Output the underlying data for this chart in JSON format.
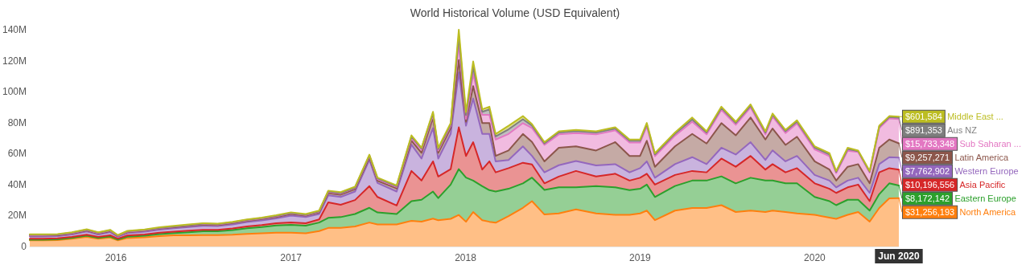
{
  "chart_data": {
    "type": "area",
    "title": "World Historical Volume (USD Equivalent)",
    "stacked": true,
    "marker": "none",
    "legend": "right",
    "x": [
      "2015-07-05",
      "2015-08-01",
      "2015-09-01",
      "2015-10-01",
      "2015-11-01",
      "2015-11-25",
      "2015-12-20",
      "2016-01-05",
      "2016-01-25",
      "2016-03-01",
      "2016-04-01",
      "2016-05-01",
      "2016-06-01",
      "2016-07-01",
      "2016-08-01",
      "2016-09-01",
      "2016-10-01",
      "2016-11-01",
      "2016-12-01",
      "2017-01-01",
      "2017-02-01",
      "2017-03-01",
      "2017-03-20",
      "2017-04-15",
      "2017-05-15",
      "2017-06-14",
      "2017-07-01",
      "2017-08-10",
      "2017-09-10",
      "2017-10-01",
      "2017-10-25",
      "2017-11-05",
      "2017-12-01",
      "2017-12-18",
      "2018-01-02",
      "2018-01-17",
      "2018-02-05",
      "2018-02-20",
      "2018-03-05",
      "2018-04-01",
      "2018-05-01",
      "2018-05-20",
      "2018-06-15",
      "2018-07-15",
      "2018-08-20",
      "2018-10-01",
      "2018-11-10",
      "2018-12-10",
      "2019-01-01",
      "2019-01-15",
      "2019-02-01",
      "2019-03-15",
      "2019-04-20",
      "2019-05-20",
      "2019-06-20",
      "2019-07-20",
      "2019-08-20",
      "2019-09-20",
      "2019-10-05",
      "2019-11-01",
      "2019-11-25",
      "2020-01-01",
      "2020-02-01",
      "2020-02-15",
      "2020-03-10",
      "2020-04-01",
      "2020-04-25",
      "2020-05-15",
      "2020-06-05",
      "2020-06-25"
    ],
    "xlim": [
      "2015-07-05",
      "2020-06-25"
    ],
    "xticks": [
      "2016",
      "2017",
      "2018",
      "2019",
      "2020"
    ],
    "ylim": [
      0,
      140000000
    ],
    "yticks": [
      0,
      {
        "value": 20000000,
        "label": "20M"
      },
      {
        "value": 40000000,
        "label": "40M"
      },
      {
        "value": 60000000,
        "label": "60M"
      },
      {
        "value": 80000000,
        "label": "80M"
      },
      {
        "value": 100000000,
        "label": "100M"
      },
      {
        "value": 120000000,
        "label": "120M"
      },
      {
        "value": 140000000,
        "label": "140M"
      }
    ],
    "annotations": [
      "Jun 2020"
    ],
    "series": [
      {
        "name": "North America",
        "color": "#ff7f0e",
        "values": [
          4000000.0,
          4000000.0,
          4200000.0,
          5000000.0,
          6200000.0,
          5000000.0,
          5800000.0,
          4000000.0,
          5500000.0,
          6000000.0,
          6800000.0,
          7200000.0,
          7200000.0,
          7400000.0,
          7400000.0,
          7600000.0,
          8200000.0,
          8600000.0,
          9000000.0,
          9000000.0,
          8500000.0,
          10000000.0,
          12000000.0,
          12000000.0,
          13000000.0,
          15500000.0,
          14300000.0,
          14300000.0,
          16600000.0,
          16100000.0,
          18000000.0,
          17000000.0,
          17900000.0,
          20400000.0,
          16000000.0,
          22300000.0,
          17000000.0,
          16000000.0,
          15400000.0,
          19600000.0,
          25000000.0,
          29300000.0,
          20700000.0,
          21400000.0,
          24000000.0,
          21400000.0,
          20500000.0,
          20500000.0,
          21400000.0,
          23200000.0,
          17000000.0,
          23200000.0,
          24900000.0,
          24900000.0,
          26700000.0,
          22300000.0,
          23200000.0,
          22300000.0,
          23200000.0,
          22300000.0,
          21400000.0,
          20500000.0,
          18700000.0,
          17900000.0,
          20500000.0,
          22300000.0,
          16100000.0,
          24900000.0,
          31100000.0,
          31256193
        ],
        "value_labels": [
          null,
          null,
          null,
          null,
          null,
          null,
          null,
          null,
          null,
          null,
          null,
          null,
          null,
          null,
          null,
          null,
          null,
          null,
          null,
          null,
          null,
          null,
          null,
          null,
          null,
          null,
          null,
          null,
          null,
          null,
          null,
          null,
          null,
          null,
          null,
          null,
          null,
          null,
          null,
          null,
          null,
          null,
          null,
          null,
          null,
          null,
          null,
          null,
          null,
          null,
          null,
          null,
          null,
          null,
          null,
          null,
          null,
          null,
          null,
          null,
          null,
          null,
          null,
          null,
          null,
          null,
          null,
          null,
          null,
          "$31,256,193"
        ]
      },
      {
        "name": "Eastern Europe",
        "color": "#2ca02c",
        "values": [
          400000.0,
          400000.0,
          500000.0,
          600000.0,
          800000.0,
          600000.0,
          700000.0,
          500000.0,
          800000.0,
          1000000.0,
          1200000.0,
          1500000.0,
          2000000.0,
          2400000.0,
          2400000.0,
          3000000.0,
          3600000.0,
          4000000.0,
          4600000.0,
          5000000.0,
          5000000.0,
          5500000.0,
          6500000.0,
          7000000.0,
          8000000.0,
          9500000.0,
          7700000.0,
          6700000.0,
          12700000.0,
          14100000.0,
          17500000.0,
          14300000.0,
          22100000.0,
          29600000.0,
          28500000.0,
          20300000.0,
          22000000.0,
          20400000.0,
          20100000.0,
          17700000.0,
          15800000.0,
          15200000.0,
          15900000.0,
          16800000.0,
          14200000.0,
          17600000.0,
          17700000.0,
          15900000.0,
          15900000.0,
          16800000.0,
          15000000.0,
          15900000.0,
          17700000.0,
          17700000.0,
          18600000.0,
          18500000.0,
          21200000.0,
          20300000.0,
          19400000.0,
          18500000.0,
          19400000.0,
          11500000.0,
          10600000.0,
          8800000.0,
          9700000.0,
          7900000.0,
          7100000.0,
          8900000.0,
          9700000.0,
          8172142
        ],
        "value_labels": [
          null,
          null,
          null,
          null,
          null,
          null,
          null,
          null,
          null,
          null,
          null,
          null,
          null,
          null,
          null,
          null,
          null,
          null,
          null,
          null,
          null,
          null,
          null,
          null,
          null,
          null,
          null,
          null,
          null,
          null,
          null,
          null,
          null,
          null,
          null,
          null,
          null,
          null,
          null,
          null,
          null,
          null,
          null,
          null,
          null,
          null,
          null,
          null,
          null,
          null,
          null,
          null,
          null,
          null,
          null,
          null,
          null,
          null,
          null,
          null,
          null,
          null,
          null,
          null,
          null,
          null,
          null,
          null,
          null,
          "$8,172,142"
        ]
      },
      {
        "name": "Asia Pacific",
        "color": "#d62728",
        "values": [
          600000.0,
          600000.0,
          600000.0,
          600000.0,
          700000.0,
          600000.0,
          800000.0,
          600000.0,
          800000.0,
          800000.0,
          900000.0,
          900000.0,
          1000000.0,
          1000000.0,
          1000000.0,
          1100000.0,
          1200000.0,
          1300000.0,
          1400000.0,
          1500000.0,
          1500000.0,
          2000000.0,
          10000000.0,
          8000000.0,
          9000000.0,
          14000000.0,
          10000000.0,
          5500000.0,
          19500000.0,
          12400000.0,
          19500000.0,
          13900000.0,
          10000000.0,
          27000000.0,
          14000000.0,
          24800000.0,
          10700000.0,
          18600000.0,
          12400000.0,
          13300000.0,
          13300000.0,
          8500000.0,
          4200000.0,
          7000000.0,
          10600000.0,
          6200000.0,
          8800000.0,
          6200000.0,
          7100000.0,
          7000000.0,
          8000000.0,
          7100000.0,
          6200000.0,
          5300000.0,
          11500000.0,
          10700000.0,
          14100000.0,
          7100000.0,
          10600000.0,
          7100000.0,
          9800000.0,
          8800000.0,
          8000000.0,
          7900000.0,
          8000000.0,
          9800000.0,
          6100000.0,
          14100000.0,
          9800000.0,
          10196556
        ],
        "value_labels": [
          null,
          null,
          null,
          null,
          null,
          null,
          null,
          null,
          null,
          null,
          null,
          null,
          null,
          null,
          null,
          null,
          null,
          null,
          null,
          null,
          null,
          null,
          null,
          null,
          null,
          null,
          null,
          null,
          null,
          null,
          null,
          null,
          null,
          null,
          null,
          null,
          null,
          null,
          null,
          null,
          null,
          null,
          null,
          null,
          null,
          null,
          null,
          null,
          null,
          null,
          null,
          null,
          null,
          null,
          null,
          null,
          null,
          null,
          null,
          null,
          null,
          null,
          null,
          null,
          null,
          null,
          null,
          null,
          null,
          "$10,196,556"
        ]
      },
      {
        "name": "Western Europe",
        "color": "#9467bd",
        "values": [
          1500000.0,
          1500000.0,
          1400000.0,
          1600000.0,
          2000000.0,
          1600000.0,
          2000000.0,
          1200000.0,
          1600000.0,
          1800000.0,
          2000000.0,
          2200000.0,
          2400000.0,
          2600000.0,
          2400000.0,
          2600000.0,
          2800000.0,
          3000000.0,
          3200000.0,
          4500000.0,
          4000000.0,
          3500000.0,
          4500000.0,
          5000000.0,
          5500000.0,
          17000000.0,
          9000000.0,
          9000000.0,
          17000000.0,
          14200000.0,
          21400000.0,
          11600000.0,
          22700000.0,
          35500000.0,
          19500000.0,
          28200000.0,
          23000000.0,
          17700000.0,
          7100000.0,
          5300000.0,
          10600000.0,
          5500000.0,
          7100000.0,
          7300000.0,
          6400000.0,
          7200000.0,
          6200000.0,
          5300000.0,
          6200000.0,
          8000000.0,
          4400000.0,
          7000000.0,
          8900000.0,
          5300000.0,
          7000000.0,
          7900000.0,
          8900000.0,
          6200000.0,
          8900000.0,
          7100000.0,
          7900000.0,
          5400000.0,
          5300000.0,
          3600000.0,
          4400000.0,
          4400000.0,
          5300000.0,
          5300000.0,
          7100000.0,
          7762902
        ],
        "value_labels": [
          null,
          null,
          null,
          null,
          null,
          null,
          null,
          null,
          null,
          null,
          null,
          null,
          null,
          null,
          null,
          null,
          null,
          null,
          null,
          null,
          null,
          null,
          null,
          null,
          null,
          null,
          null,
          null,
          null,
          null,
          null,
          null,
          null,
          null,
          null,
          null,
          null,
          null,
          null,
          null,
          null,
          null,
          null,
          null,
          null,
          null,
          null,
          null,
          null,
          null,
          null,
          null,
          null,
          null,
          null,
          null,
          null,
          null,
          null,
          null,
          null,
          null,
          null,
          null,
          null,
          null,
          null,
          null,
          null,
          "$7,762,902"
        ]
      },
      {
        "name": "Latin America",
        "color": "#8c564b",
        "values": [
          600000.0,
          600000.0,
          600000.0,
          600000.0,
          700000.0,
          600000.0,
          700000.0,
          500000.0,
          600000.0,
          600000.0,
          700000.0,
          700000.0,
          700000.0,
          800000.0,
          700000.0,
          800000.0,
          800000.0,
          900000.0,
          900000.0,
          1000000.0,
          900000.0,
          1000000.0,
          1500000.0,
          1500000.0,
          1500000.0,
          1500000.0,
          1500000.0,
          2000000.0,
          2600000.0,
          3700000.0,
          6600000.0,
          3700000.0,
          3700000.0,
          7900000.0,
          2600000.0,
          8000000.0,
          7000000.0,
          7000000.0,
          3500000.0,
          6100000.0,
          8000000.0,
          9000000.0,
          7100000.0,
          11300000.0,
          9500000.0,
          9600000.0,
          14200000.0,
          10600000.0,
          7900000.0,
          13300000.0,
          7100000.0,
          11500000.0,
          15000000.0,
          13300000.0,
          15900000.0,
          12400000.0,
          15900000.0,
          13200000.0,
          14100000.0,
          10600000.0,
          12400000.0,
          8800000.0,
          7100000.0,
          4400000.0,
          8900000.0,
          8800000.0,
          6200000.0,
          10600000.0,
          11400000.0,
          9257271
        ],
        "value_labels": [
          null,
          null,
          null,
          null,
          null,
          null,
          null,
          null,
          null,
          null,
          null,
          null,
          null,
          null,
          null,
          null,
          null,
          null,
          null,
          null,
          null,
          null,
          null,
          null,
          null,
          null,
          null,
          null,
          null,
          null,
          null,
          null,
          null,
          null,
          null,
          null,
          null,
          null,
          null,
          null,
          null,
          null,
          null,
          null,
          null,
          null,
          null,
          null,
          null,
          null,
          null,
          null,
          null,
          null,
          null,
          null,
          null,
          null,
          null,
          null,
          null,
          null,
          null,
          null,
          null,
          null,
          null,
          null,
          null,
          "$9,257,271"
        ]
      },
      {
        "name": "Sub Saharan ...",
        "color": "#e377c2",
        "values": [
          300000.0,
          300000.0,
          300000.0,
          300000.0,
          300000.0,
          300000.0,
          300000.0,
          200000.0,
          300000.0,
          300000.0,
          300000.0,
          300000.0,
          400000.0,
          400000.0,
          400000.0,
          400000.0,
          400000.0,
          400000.0,
          500000.0,
          500000.0,
          500000.0,
          600000.0,
          800000.0,
          800000.0,
          800000.0,
          1000000.0,
          1000000.0,
          1000000.0,
          1600000.0,
          2000000.0,
          2000000.0,
          1500000.0,
          1700000.0,
          10600000.0,
          1800000.0,
          8000000.0,
          5300000.0,
          5300000.0,
          10600000.0,
          10700000.0,
          7000000.0,
          9000000.0,
          10600000.0,
          8600000.0,
          8600000.0,
          10400000.0,
          7600000.0,
          8600000.0,
          8600000.0,
          9500000.0,
          6800000.0,
          6900000.0,
          7900000.0,
          5900000.0,
          8600000.0,
          6800000.0,
          6500000.0,
          3300000.0,
          7700000.0,
          7700000.0,
          8600000.0,
          7700000.0,
          8600000.0,
          4800000.0,
          10300000.0,
          7900000.0,
          6900000.0,
          12600000.0,
          13600000.0,
          15733348
        ],
        "value_labels": [
          null,
          null,
          null,
          null,
          null,
          null,
          null,
          null,
          null,
          null,
          null,
          null,
          null,
          null,
          null,
          null,
          null,
          null,
          null,
          null,
          null,
          null,
          null,
          null,
          null,
          null,
          null,
          null,
          null,
          null,
          null,
          null,
          null,
          null,
          null,
          null,
          null,
          null,
          null,
          null,
          null,
          null,
          null,
          null,
          null,
          null,
          null,
          null,
          null,
          null,
          null,
          null,
          null,
          null,
          null,
          null,
          null,
          null,
          null,
          null,
          null,
          null,
          null,
          null,
          null,
          null,
          null,
          null,
          null,
          "$15,733,348"
        ]
      },
      {
        "name": "Aus NZ",
        "color": "#7f7f7f",
        "values": [
          200000.0,
          200000.0,
          200000.0,
          200000.0,
          200000.0,
          200000.0,
          200000.0,
          200000.0,
          200000.0,
          200000.0,
          200000.0,
          200000.0,
          200000.0,
          200000.0,
          200000.0,
          200000.0,
          200000.0,
          200000.0,
          200000.0,
          200000.0,
          200000.0,
          200000.0,
          300000.0,
          300000.0,
          300000.0,
          300000.0,
          500000.0,
          500000.0,
          1000000.0,
          800000.0,
          1000000.0,
          1000000.0,
          800000.0,
          5000000.0,
          2500000.0,
          4400000.0,
          2000000.0,
          3500000.0,
          2000000.0,
          3000000.0,
          2500000.0,
          1600000.0,
          1000000.0,
          1200000.0,
          1200000.0,
          1200000.0,
          1200000.0,
          1200000.0,
          1200000.0,
          1200000.0,
          1200000.0,
          1200000.0,
          1500000.0,
          1200000.0,
          1200000.0,
          1200000.0,
          1200000.0,
          1200000.0,
          1200000.0,
          1200000.0,
          1200000.0,
          1200000.0,
          1200000.0,
          800000.0,
          1200000.0,
          500000.0,
          600000.0,
          1000000.0,
          900000.0,
          891353
        ],
        "value_labels": [
          null,
          null,
          null,
          null,
          null,
          null,
          null,
          null,
          null,
          null,
          null,
          null,
          null,
          null,
          null,
          null,
          null,
          null,
          null,
          null,
          null,
          null,
          null,
          null,
          null,
          null,
          null,
          null,
          null,
          null,
          null,
          null,
          null,
          null,
          null,
          null,
          null,
          null,
          null,
          null,
          null,
          null,
          null,
          null,
          null,
          null,
          null,
          null,
          null,
          null,
          null,
          null,
          null,
          null,
          null,
          null,
          null,
          null,
          null,
          null,
          null,
          null,
          null,
          null,
          null,
          null,
          null,
          null,
          null,
          "$891,353"
        ]
      },
      {
        "name": "Middle East ...",
        "color": "#bcbd22",
        "values": [
          300000.0,
          300000.0,
          300000.0,
          300000.0,
          300000.0,
          300000.0,
          300000.0,
          200000.0,
          300000.0,
          300000.0,
          300000.0,
          300000.0,
          300000.0,
          300000.0,
          300000.0,
          300000.0,
          300000.0,
          300000.0,
          400000.0,
          400000.0,
          400000.0,
          400000.0,
          500000.0,
          500000.0,
          500000.0,
          500000.0,
          500000.0,
          500000.0,
          800000.0,
          500000.0,
          1000000.0,
          800000.0,
          800000.0,
          4000000.0,
          1900000.0,
          3500000.0,
          1600000.0,
          1800000.0,
          1600000.0,
          2300000.0,
          2000000.0,
          1000000.0,
          800000.0,
          800000.0,
          800000.0,
          800000.0,
          800000.0,
          800000.0,
          800000.0,
          800000.0,
          800000.0,
          800000.0,
          1200000.0,
          800000.0,
          800000.0,
          800000.0,
          800000.0,
          800000.0,
          800000.0,
          800000.0,
          800000.0,
          800000.0,
          800000.0,
          600000.0,
          800000.0,
          400000.0,
          500000.0,
          600000.0,
          600000.0,
          601584
        ],
        "value_labels": [
          null,
          null,
          null,
          null,
          null,
          null,
          null,
          null,
          null,
          null,
          null,
          null,
          null,
          null,
          null,
          null,
          null,
          null,
          null,
          null,
          null,
          null,
          null,
          null,
          null,
          null,
          null,
          null,
          null,
          null,
          null,
          null,
          null,
          null,
          null,
          null,
          null,
          null,
          null,
          null,
          null,
          null,
          null,
          null,
          null,
          null,
          null,
          null,
          null,
          null,
          null,
          null,
          null,
          null,
          null,
          null,
          null,
          null,
          null,
          null,
          null,
          null,
          null,
          null,
          null,
          null,
          null,
          null,
          null,
          "$601,584"
        ]
      }
    ]
  }
}
